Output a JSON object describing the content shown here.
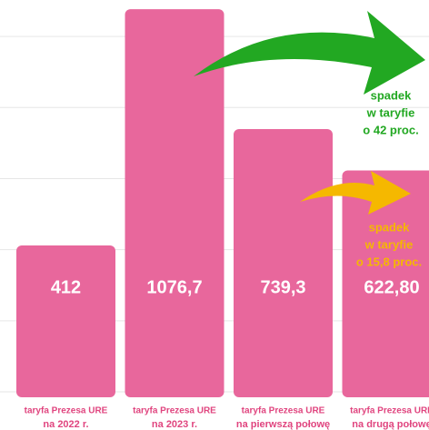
{
  "chart_data": {
    "type": "bar",
    "categories": [
      [
        "taryfa Prezesa URE",
        "na 2022 r."
      ],
      [
        "taryfa Prezesa URE",
        "na 2023 r."
      ],
      [
        "taryfa Prezesa URE",
        "na pierwszą połowę"
      ],
      [
        "taryfa Prezesa URE",
        "na drugą połowę"
      ]
    ],
    "values": [
      412,
      1076.7,
      739.3,
      622.8
    ],
    "value_labels": [
      "412",
      "1076,7",
      "739,3",
      "622,80"
    ],
    "color": "#e8679c",
    "ylim": [
      0,
      1100
    ],
    "yticks": [
      0,
      200,
      400,
      600,
      800,
      1000
    ],
    "grid": true,
    "annotations": [
      {
        "lines": [
          "spadek",
          "w taryfie",
          "o 42 proc."
        ],
        "color": "#22a822"
      },
      {
        "lines": [
          "spadek",
          "w taryfie",
          "o 15,8 proc."
        ],
        "color": "#f5b800"
      }
    ]
  }
}
